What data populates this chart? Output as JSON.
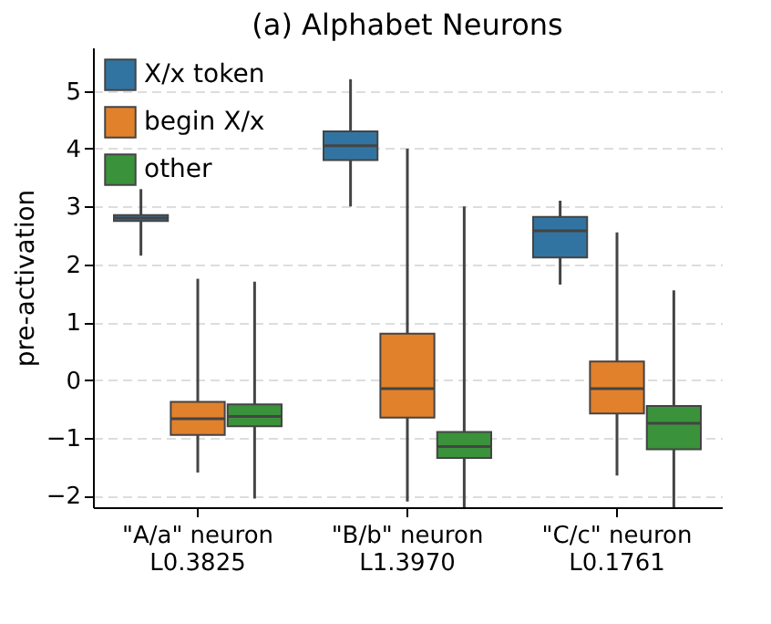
{
  "chart_data": {
    "type": "box",
    "title": "(a) Alphabet Neurons",
    "ylabel": "pre-activation",
    "categories": [
      "\"A/a\" neuron\nL0.3825",
      "\"B/b\" neuron\nL1.3970",
      "\"C/c\" neuron\nL0.1761"
    ],
    "series": [
      {
        "name": "X/x token",
        "color": "#3274a1",
        "boxes": [
          {
            "low": 2.15,
            "q1": 2.75,
            "median": 2.8,
            "q3": 2.85,
            "high": 3.3
          },
          {
            "low": 3.0,
            "q1": 3.8,
            "median": 4.05,
            "q3": 4.3,
            "high": 5.2
          },
          {
            "low": 1.65,
            "q1": 2.12,
            "median": 2.58,
            "q3": 2.82,
            "high": 3.1
          }
        ]
      },
      {
        "name": "begin X/x",
        "color": "#e1812c",
        "boxes": [
          {
            "low": -1.6,
            "q1": -0.95,
            "median": -0.67,
            "q3": -0.38,
            "high": 1.75
          },
          {
            "low": -2.1,
            "q1": -0.65,
            "median": -0.15,
            "q3": 0.8,
            "high": 4.0
          },
          {
            "low": -1.65,
            "q1": -0.58,
            "median": -0.15,
            "q3": 0.32,
            "high": 2.55
          }
        ]
      },
      {
        "name": "other",
        "color": "#3a923a",
        "boxes": [
          {
            "low": -2.05,
            "q1": -0.8,
            "median": -0.63,
            "q3": -0.42,
            "high": 1.7
          },
          {
            "low": -2.2,
            "q1": -1.35,
            "median": -1.15,
            "q3": -0.9,
            "high": 3.0
          },
          {
            "low": -2.2,
            "q1": -1.2,
            "median": -0.75,
            "q3": -0.45,
            "high": 1.55
          }
        ]
      }
    ],
    "ylim": [
      -2.2,
      5.75
    ],
    "yticks": [
      -2,
      -1,
      0,
      1,
      2,
      3,
      4,
      5
    ],
    "grid": "y",
    "legend": "top left"
  }
}
